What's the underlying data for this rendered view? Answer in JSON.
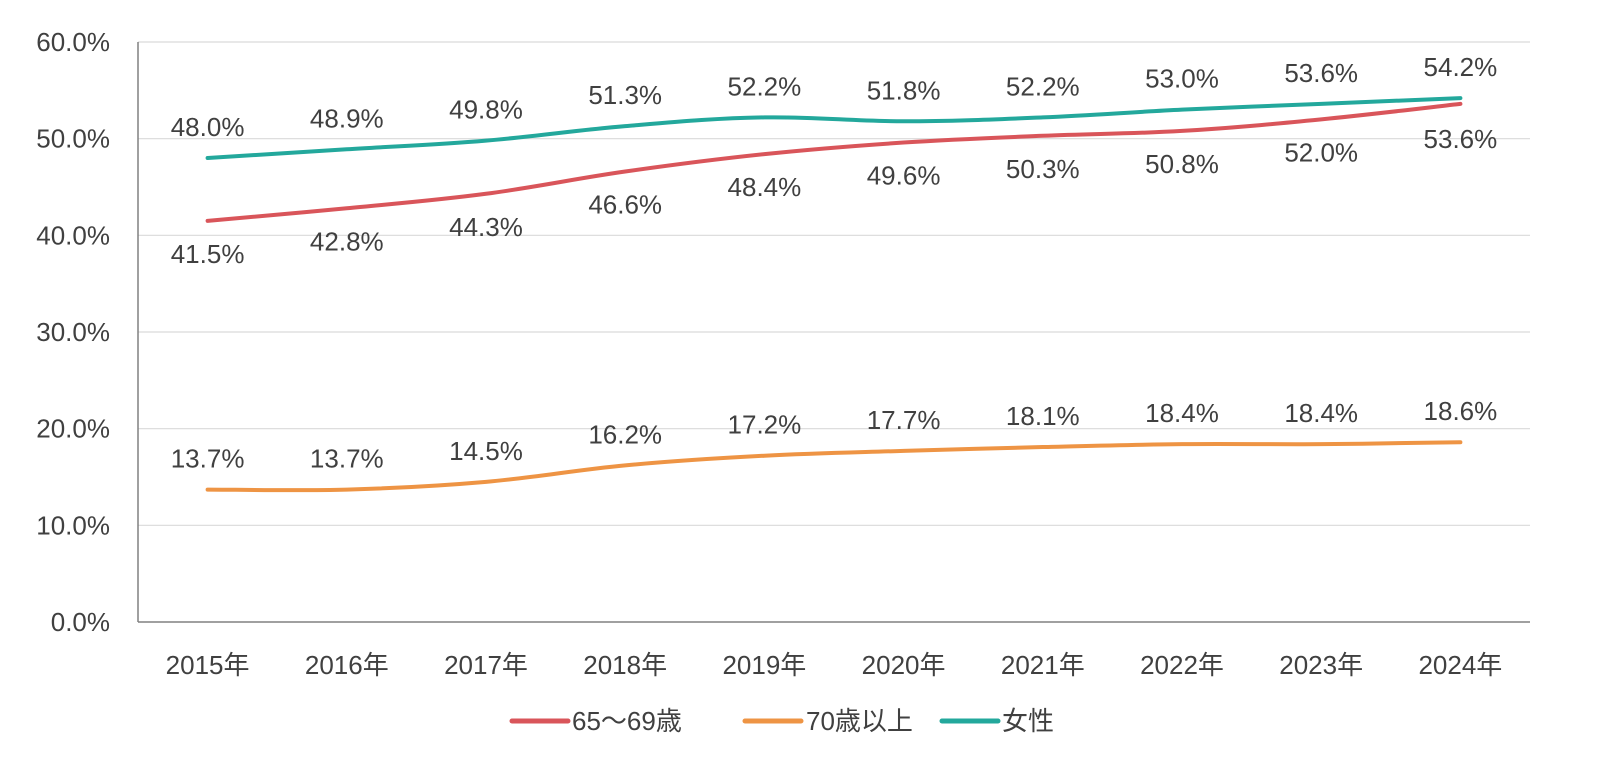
{
  "chart_data": {
    "type": "line",
    "title": "",
    "xlabel": "",
    "ylabel": "",
    "categories": [
      "2015年",
      "2016年",
      "2017年",
      "2018年",
      "2019年",
      "2020年",
      "2021年",
      "2022年",
      "2023年",
      "2024年"
    ],
    "ylim": [
      0,
      60
    ],
    "y_ticks": [
      "0.0%",
      "10.0%",
      "20.0%",
      "30.0%",
      "40.0%",
      "50.0%",
      "60.0%"
    ],
    "grid": true,
    "legend_position": "bottom",
    "series": [
      {
        "name": "65〜69歳",
        "color": "#d9555a",
        "values": [
          41.5,
          42.8,
          44.3,
          46.6,
          48.4,
          49.6,
          50.3,
          50.8,
          52.0,
          53.6
        ],
        "labels": [
          "41.5%",
          "42.8%",
          "44.3%",
          "46.6%",
          "48.4%",
          "49.6%",
          "50.3%",
          "50.8%",
          "52.0%",
          "53.6%"
        ]
      },
      {
        "name": "70歳以上",
        "color": "#ee9444",
        "values": [
          13.7,
          13.7,
          14.5,
          16.2,
          17.2,
          17.7,
          18.1,
          18.4,
          18.4,
          18.6
        ],
        "labels": [
          "13.7%",
          "13.7%",
          "14.5%",
          "16.2%",
          "17.2%",
          "17.7%",
          "18.1%",
          "18.4%",
          "18.4%",
          "18.6%"
        ]
      },
      {
        "name": "女性",
        "color": "#23a89c",
        "values": [
          48.0,
          48.9,
          49.8,
          51.3,
          52.2,
          51.8,
          52.2,
          53.0,
          53.6,
          54.2
        ],
        "labels": [
          "48.0%",
          "48.9%",
          "49.8%",
          "51.3%",
          "52.2%",
          "51.8%",
          "52.2%",
          "53.0%",
          "53.6%",
          "54.2%"
        ]
      }
    ]
  }
}
